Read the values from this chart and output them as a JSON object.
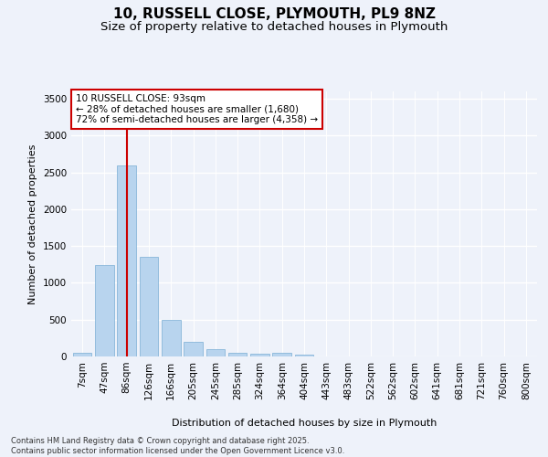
{
  "title_line1": "10, RUSSELL CLOSE, PLYMOUTH, PL9 8NZ",
  "title_line2": "Size of property relative to detached houses in Plymouth",
  "xlabel": "Distribution of detached houses by size in Plymouth",
  "ylabel": "Number of detached properties",
  "categories": [
    "7sqm",
    "47sqm",
    "86sqm",
    "126sqm",
    "166sqm",
    "205sqm",
    "245sqm",
    "285sqm",
    "324sqm",
    "364sqm",
    "404sqm",
    "443sqm",
    "483sqm",
    "522sqm",
    "562sqm",
    "602sqm",
    "641sqm",
    "681sqm",
    "721sqm",
    "760sqm",
    "800sqm"
  ],
  "values": [
    50,
    1240,
    2600,
    1350,
    500,
    200,
    100,
    50,
    40,
    50,
    30,
    0,
    0,
    0,
    0,
    0,
    0,
    0,
    0,
    0,
    0
  ],
  "bar_color": "#b8d4ee",
  "bar_edge_color": "#7aaed4",
  "vline_color": "#cc0000",
  "vline_x": 2,
  "ylim": [
    0,
    3600
  ],
  "yticks": [
    0,
    500,
    1000,
    1500,
    2000,
    2500,
    3000,
    3500
  ],
  "annotation_text": "10 RUSSELL CLOSE: 93sqm\n← 28% of detached houses are smaller (1,680)\n72% of semi-detached houses are larger (4,358) →",
  "annotation_box_facecolor": "#ffffff",
  "annotation_box_edgecolor": "#cc0000",
  "background_color": "#eef2fa",
  "grid_color": "#ffffff",
  "footnote": "Contains HM Land Registry data © Crown copyright and database right 2025.\nContains public sector information licensed under the Open Government Licence v3.0.",
  "title_fontsize": 11,
  "subtitle_fontsize": 9.5,
  "axis_label_fontsize": 8,
  "tick_fontsize": 7.5,
  "annotation_fontsize": 7.5,
  "footnote_fontsize": 6
}
